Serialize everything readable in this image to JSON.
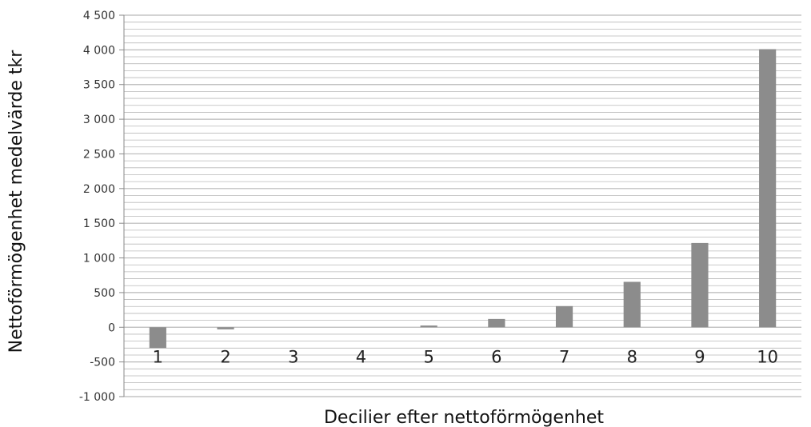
{
  "chart_data": {
    "type": "bar",
    "title": "",
    "xlabel": "Decilier efter nettoförmögenhet",
    "ylabel": "Nettoförmögenhet medelvärde tkr",
    "categories": [
      "1",
      "2",
      "3",
      "4",
      "5",
      "6",
      "7",
      "8",
      "9",
      "10"
    ],
    "values": [
      -300,
      -30,
      0,
      0,
      25,
      120,
      305,
      655,
      1215,
      4010
    ],
    "ylim": [
      -1000,
      4500
    ],
    "y_ticks": [
      4500,
      4000,
      3500,
      3000,
      2500,
      2000,
      1500,
      1000,
      500,
      0,
      -500,
      -1000
    ],
    "y_tick_labels": [
      "4 500",
      "4 000",
      "3 500",
      "3 000",
      "2 500",
      "2 000",
      "1 500",
      "1 000",
      "500",
      "0",
      "-500",
      "-1 000"
    ],
    "grid": true,
    "minor_grid_step": 100,
    "legend": "none",
    "bar_color": "#8c8c8c",
    "grid_color": "#b9b9b9",
    "axis_color": "#8a8a8a"
  }
}
